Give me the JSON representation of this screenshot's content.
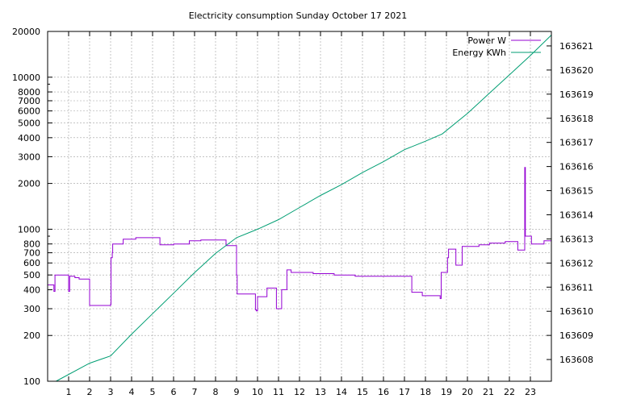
{
  "chart_data": {
    "type": "line",
    "title": "Electricity consumption Sunday October 17 2021",
    "xlabel": "",
    "ylabel": "",
    "grid": true,
    "legend_position": "top-right",
    "x_axis": {
      "range": [
        0,
        24
      ],
      "ticks": [
        1,
        2,
        3,
        4,
        5,
        6,
        7,
        8,
        9,
        10,
        11,
        12,
        13,
        14,
        15,
        16,
        17,
        18,
        19,
        20,
        21,
        22,
        23
      ],
      "tick_labels": [
        "1",
        "2",
        "3",
        "4",
        "5",
        "6",
        "7",
        "8",
        "9",
        "10",
        "11",
        "12",
        "13",
        "14",
        "15",
        "16",
        "17",
        "18",
        "19",
        "20",
        "21",
        "22",
        "23"
      ]
    },
    "y_axis_left": {
      "scale": "log",
      "range": [
        100,
        20000
      ],
      "ticks": [
        100,
        200,
        300,
        400,
        500,
        600,
        700,
        800,
        1000,
        2000,
        3000,
        4000,
        5000,
        6000,
        7000,
        8000,
        10000,
        20000
      ],
      "tick_labels": [
        "100",
        "200",
        "300",
        "400",
        "500",
        "600",
        "700",
        "800",
        "1000",
        "2000",
        "3000",
        "4000",
        "5000",
        "6000",
        "7000",
        "8000",
        "10000",
        "20000"
      ]
    },
    "y_axis_right": {
      "scale": "linear",
      "range": [
        163607.1,
        163621.6
      ],
      "ticks": [
        163608,
        163609,
        163610,
        163611,
        163612,
        163613,
        163614,
        163615,
        163616,
        163617,
        163618,
        163619,
        163620,
        163621
      ],
      "tick_labels": [
        "163608",
        "163609",
        "163610",
        "163611",
        "163612",
        "163613",
        "163614",
        "163615",
        "163616",
        "163617",
        "163618",
        "163619",
        "163620",
        "163621"
      ]
    },
    "series": [
      {
        "name": "Power W",
        "color": "#9400d3",
        "axis": "left",
        "step": true,
        "points": [
          [
            0,
            430
          ],
          [
            0.3,
            430
          ],
          [
            0.3,
            390
          ],
          [
            0.35,
            500
          ],
          [
            0.95,
            500
          ],
          [
            1.0,
            390
          ],
          [
            1.05,
            490
          ],
          [
            1.3,
            480
          ],
          [
            1.5,
            470
          ],
          [
            1.95,
            470
          ],
          [
            2.0,
            315
          ],
          [
            2.95,
            315
          ],
          [
            3.0,
            320
          ],
          [
            3.02,
            650
          ],
          [
            3.08,
            700
          ],
          [
            3.1,
            800
          ],
          [
            3.55,
            800
          ],
          [
            3.6,
            860
          ],
          [
            4.1,
            860
          ],
          [
            4.2,
            880
          ],
          [
            5.3,
            880
          ],
          [
            5.35,
            790
          ],
          [
            5.8,
            790
          ],
          [
            6.0,
            800
          ],
          [
            6.7,
            800
          ],
          [
            6.75,
            840
          ],
          [
            7.2,
            840
          ],
          [
            7.3,
            850
          ],
          [
            8.45,
            850
          ],
          [
            8.5,
            780
          ],
          [
            8.95,
            780
          ],
          [
            9.0,
            500
          ],
          [
            9.03,
            375
          ],
          [
            9.85,
            375
          ],
          [
            9.9,
            295
          ],
          [
            9.95,
            290
          ],
          [
            10.0,
            360
          ],
          [
            10.4,
            360
          ],
          [
            10.45,
            410
          ],
          [
            10.85,
            410
          ],
          [
            10.9,
            300
          ],
          [
            11.1,
            300
          ],
          [
            11.15,
            400
          ],
          [
            11.35,
            400
          ],
          [
            11.4,
            540
          ],
          [
            11.55,
            540
          ],
          [
            11.6,
            520
          ],
          [
            12.6,
            520
          ],
          [
            12.65,
            510
          ],
          [
            13.6,
            510
          ],
          [
            13.65,
            500
          ],
          [
            14.6,
            500
          ],
          [
            14.65,
            490
          ],
          [
            17.3,
            490
          ],
          [
            17.35,
            385
          ],
          [
            17.8,
            385
          ],
          [
            17.85,
            365
          ],
          [
            18.65,
            365
          ],
          [
            18.7,
            350
          ],
          [
            18.75,
            520
          ],
          [
            19.0,
            520
          ],
          [
            19.05,
            650
          ],
          [
            19.1,
            740
          ],
          [
            19.4,
            740
          ],
          [
            19.45,
            580
          ],
          [
            19.7,
            580
          ],
          [
            19.75,
            770
          ],
          [
            20.5,
            770
          ],
          [
            20.55,
            790
          ],
          [
            21.0,
            790
          ],
          [
            21.05,
            810
          ],
          [
            21.75,
            810
          ],
          [
            21.8,
            830
          ],
          [
            22.35,
            830
          ],
          [
            22.4,
            730
          ],
          [
            22.7,
            730
          ],
          [
            22.73,
            2550
          ],
          [
            22.76,
            900
          ],
          [
            23.0,
            900
          ],
          [
            23.05,
            800
          ],
          [
            23.6,
            800
          ],
          [
            23.65,
            840
          ],
          [
            24.0,
            840
          ]
        ]
      },
      {
        "name": "Energy KWh",
        "color": "#009e73",
        "axis": "right",
        "step": false,
        "points": [
          [
            0.4,
            163607.1
          ],
          [
            2.0,
            163607.85
          ],
          [
            3.0,
            163608.15
          ],
          [
            4.0,
            163609.05
          ],
          [
            5.0,
            163609.9
          ],
          [
            6.0,
            163610.75
          ],
          [
            7.0,
            163611.6
          ],
          [
            8.0,
            163612.4
          ],
          [
            9.0,
            163613.05
          ],
          [
            10.0,
            163613.4
          ],
          [
            11.0,
            163613.8
          ],
          [
            12.0,
            163614.3
          ],
          [
            13.0,
            163614.8
          ],
          [
            14.0,
            163615.25
          ],
          [
            15.0,
            163615.75
          ],
          [
            16.0,
            163616.2
          ],
          [
            17.0,
            163616.7
          ],
          [
            18.0,
            163617.05
          ],
          [
            18.8,
            163617.35
          ],
          [
            20.0,
            163618.2
          ],
          [
            21.0,
            163619.0
          ],
          [
            22.0,
            163619.8
          ],
          [
            23.0,
            163620.6
          ],
          [
            24.0,
            163621.45
          ]
        ]
      }
    ]
  }
}
